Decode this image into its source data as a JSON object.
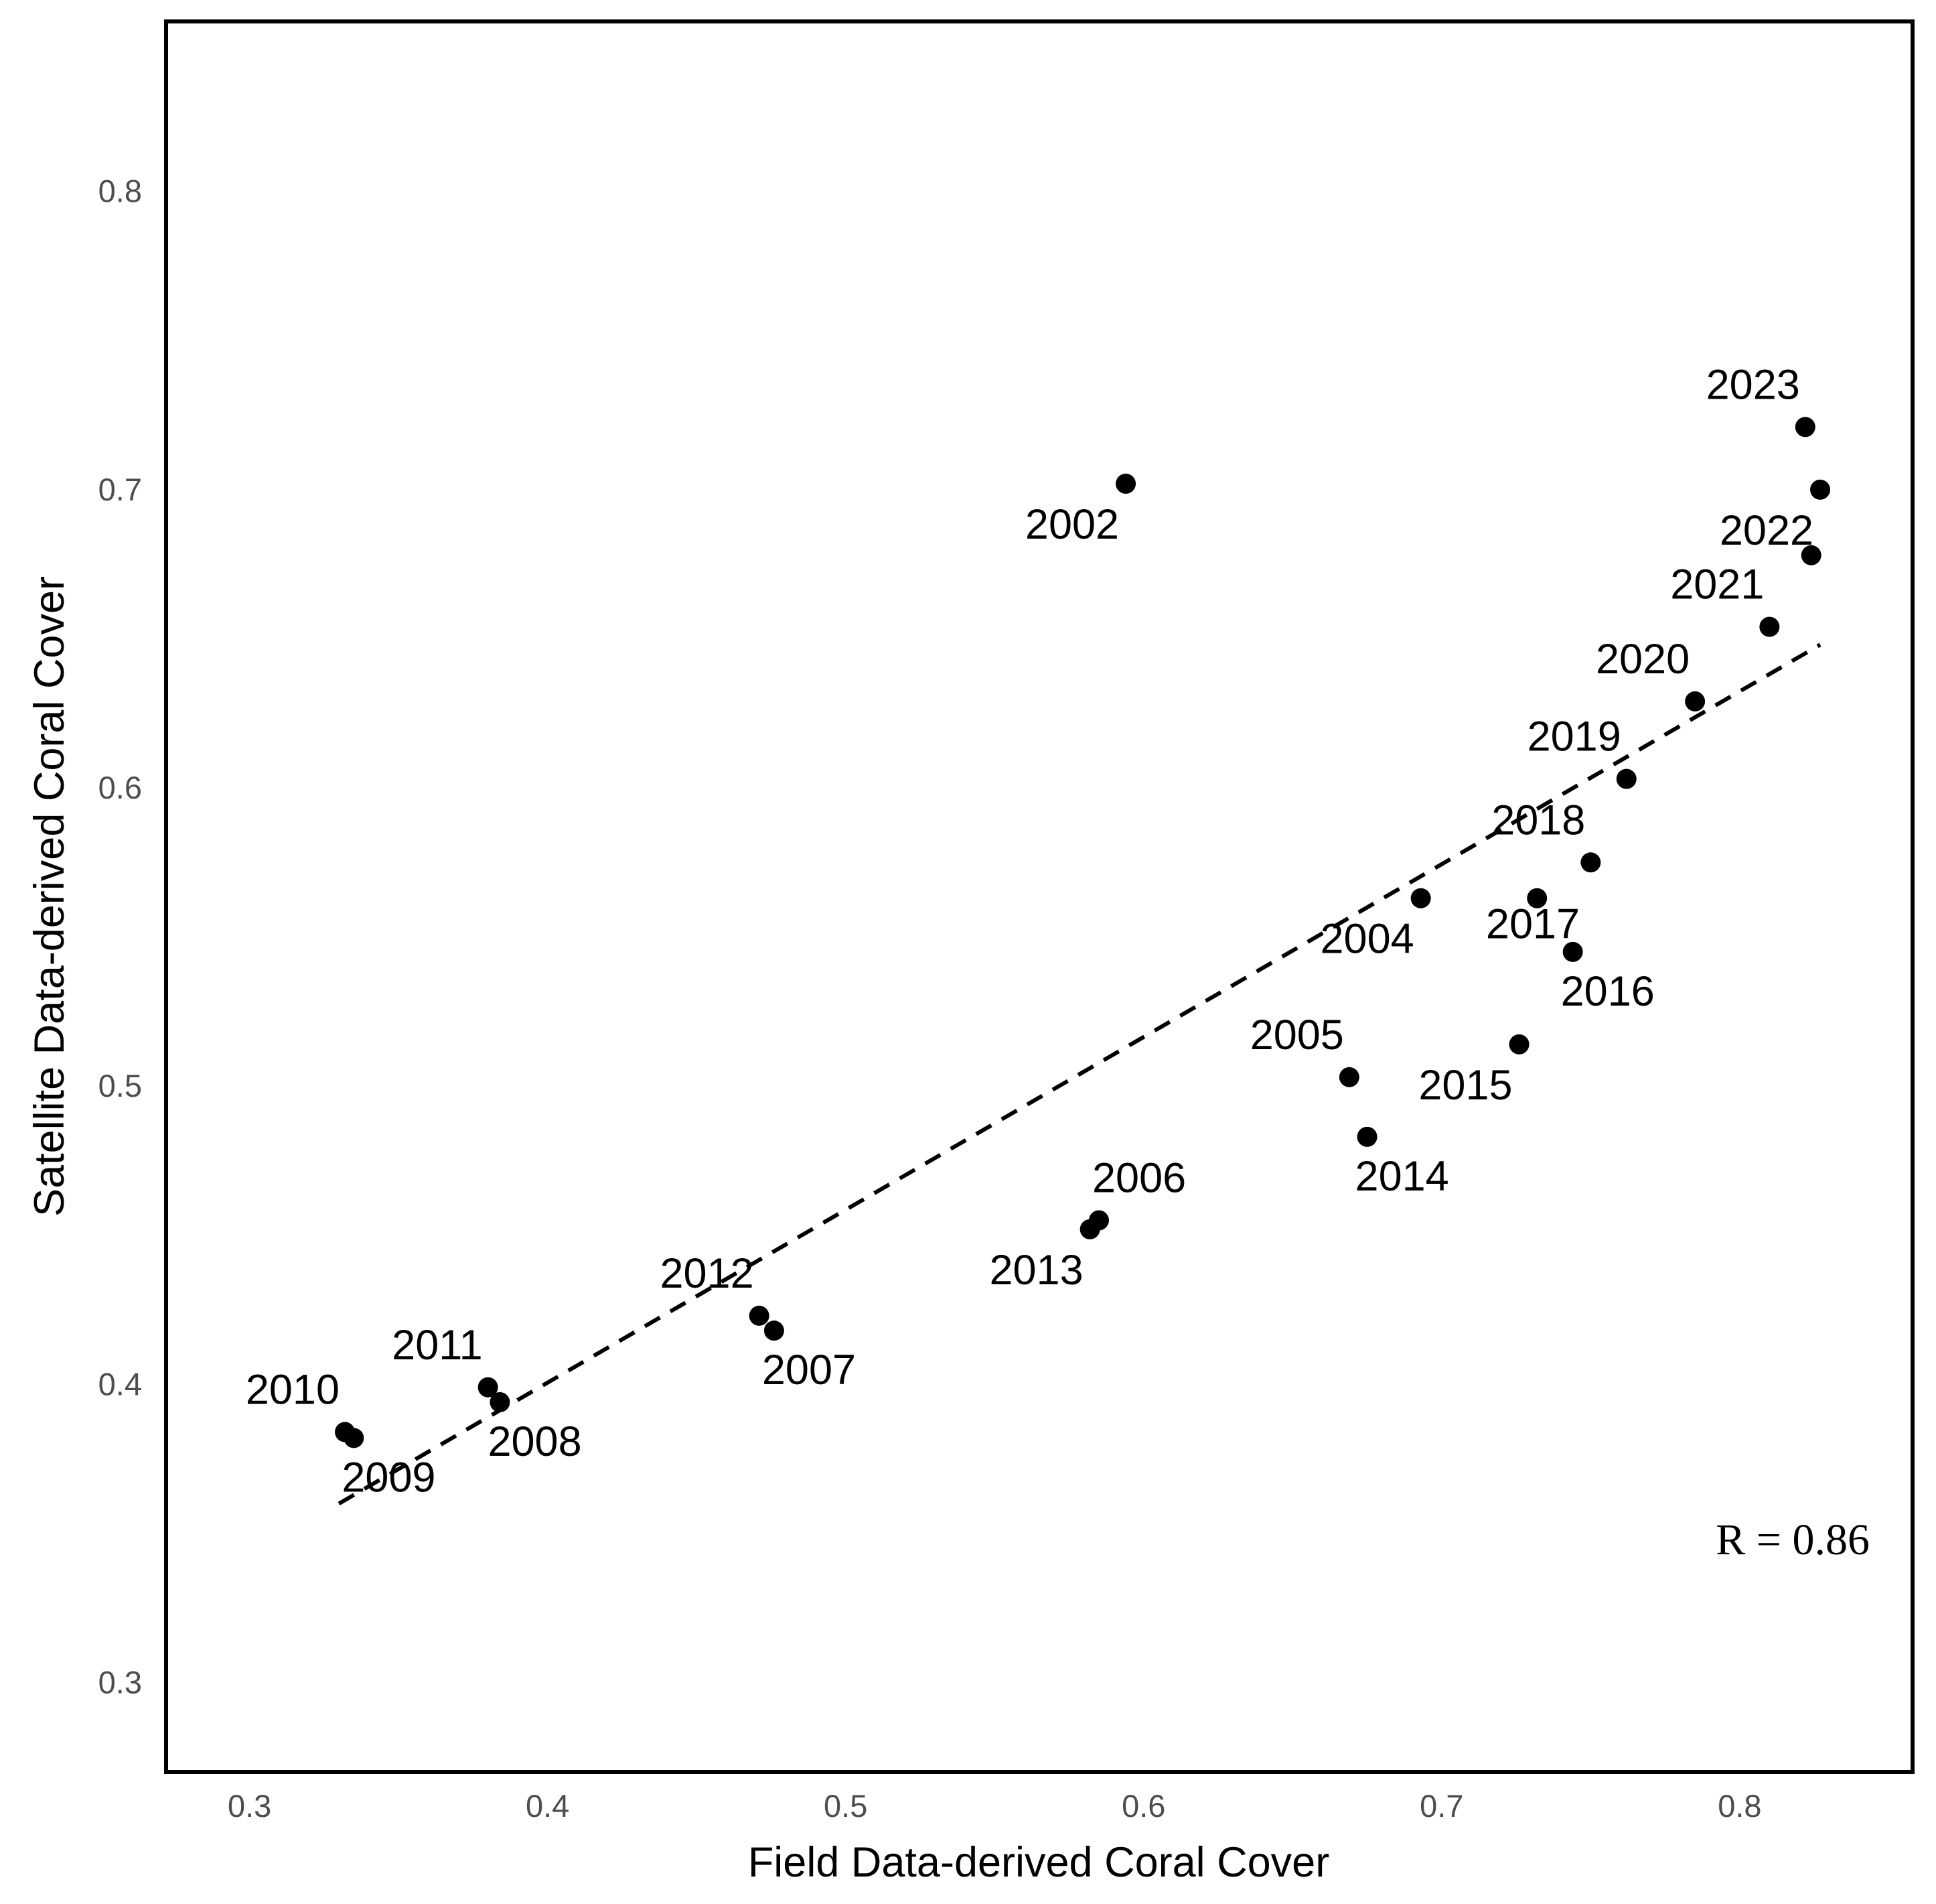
{
  "chart_data": {
    "type": "scatter",
    "title": "",
    "xlabel": "Field Data-derived Coral Cover",
    "ylabel": "Satellite Data-derived Coral Cover",
    "xlim": [
      0.272,
      0.858
    ],
    "ylim": [
      0.27,
      0.857
    ],
    "xticks": [
      0.3,
      0.4,
      0.5,
      0.6,
      0.7,
      0.8
    ],
    "yticks": [
      0.3,
      0.4,
      0.5,
      0.6,
      0.7,
      0.8
    ],
    "xtick_labels": [
      "0.3",
      "0.4",
      "0.5",
      "0.6",
      "0.7",
      "0.8"
    ],
    "ytick_labels": [
      "0.3",
      "0.4",
      "0.5",
      "0.6",
      "0.7",
      "0.8"
    ],
    "grid": false,
    "points": [
      {
        "label": "2002",
        "x": 0.594,
        "y": 0.702,
        "label_pos": "below-left"
      },
      {
        "label": "2004",
        "x": 0.693,
        "y": 0.563,
        "label_pos": "below-left"
      },
      {
        "label": "2005",
        "x": 0.669,
        "y": 0.503,
        "label_pos": "above-left"
      },
      {
        "label": "2006",
        "x": 0.585,
        "y": 0.455,
        "label_pos": "above-right"
      },
      {
        "label": "2007",
        "x": 0.476,
        "y": 0.418,
        "label_pos": "below-right"
      },
      {
        "label": "2008",
        "x": 0.384,
        "y": 0.394,
        "label_pos": "below-right"
      },
      {
        "label": "2009",
        "x": 0.335,
        "y": 0.382,
        "label_pos": "below-right"
      },
      {
        "label": "2010",
        "x": 0.332,
        "y": 0.384,
        "label_pos": "above-left"
      },
      {
        "label": "2011",
        "x": 0.38,
        "y": 0.399,
        "label_pos": "above-left"
      },
      {
        "label": "2012",
        "x": 0.471,
        "y": 0.423,
        "label_pos": "above-left"
      },
      {
        "label": "2013",
        "x": 0.582,
        "y": 0.452,
        "label_pos": "below-left"
      },
      {
        "label": "2014",
        "x": 0.675,
        "y": 0.483,
        "label_pos": "below-right"
      },
      {
        "label": "2015",
        "x": 0.726,
        "y": 0.514,
        "label_pos": "below-left"
      },
      {
        "label": "2016",
        "x": 0.744,
        "y": 0.545,
        "label_pos": "below-right"
      },
      {
        "label": "2017",
        "x": 0.732,
        "y": 0.563,
        "label_pos": "none"
      },
      {
        "label": "2018",
        "x": 0.75,
        "y": 0.575,
        "label_pos": "above-left"
      },
      {
        "label": "2019",
        "x": 0.762,
        "y": 0.603,
        "label_pos": "above-left"
      },
      {
        "label": "2020",
        "x": 0.785,
        "y": 0.629,
        "label_pos": "above-left"
      },
      {
        "label": "2021",
        "x": 0.81,
        "y": 0.654,
        "label_pos": "above-left"
      },
      {
        "label": "2022",
        "x": 0.827,
        "y": 0.7,
        "label_pos": "below-left"
      },
      {
        "label": "",
        "x": 0.824,
        "y": 0.678,
        "label_pos": "none"
      },
      {
        "label": "2023",
        "x": 0.822,
        "y": 0.721,
        "label_pos": "above-left"
      }
    ],
    "extra_labels": [
      {
        "text": "2017",
        "x": 0.7306,
        "y": 0.5496
      }
    ],
    "trend_line": {
      "style": "dashed",
      "x": [
        0.33,
        0.827
      ],
      "y": [
        0.36,
        0.648
      ]
    },
    "annotations": [
      {
        "text": "R = 0.86",
        "x": 0.792,
        "y": 0.343
      }
    ]
  }
}
